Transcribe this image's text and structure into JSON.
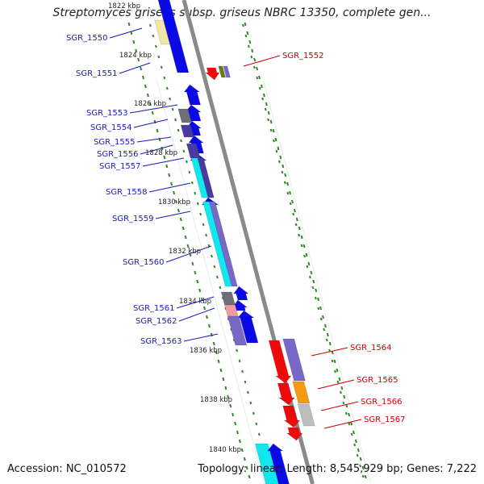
{
  "title": "Streptomyces griseus subsp. griseus NBRC 13350, complete gen...",
  "footer": {
    "accession": "Accession: NC_010572",
    "summary": "Topology: linear; Length: 8,545,929 bp; Genes: 7,222"
  },
  "ruler": [
    "1822 kbp",
    "1824 kbp",
    "1826 kbp",
    "1828 kbp",
    "1830 kbp",
    "1832 kbp",
    "1834 kbp",
    "1836 kbp",
    "1838 kbp",
    "1840 kbp"
  ],
  "colors": {
    "backbone": "#8a8a8a",
    "tick": "#2e8b22",
    "left_label": "#1a1ab4",
    "right_label": "#cc0000",
    "gene_blue": "#0a0ae6",
    "gene_red": "#ee0a0a",
    "gene_navy": "#4a3aa0",
    "gene_purple": "#7a68c8",
    "gene_cyan": "#10e8f0",
    "gene_grey": "#6e6e78",
    "gene_tan": "#f2e7a6",
    "gene_olive": "#6a7a18",
    "gene_pink": "#f19c9c",
    "gene_orange": "#f29a10",
    "gene_silver": "#bdbdbd"
  },
  "labels_left": [
    "SGR_1550",
    "SGR_1551",
    "SGR_1553",
    "SGR_1554",
    "SGR_1555",
    "SGR_1556",
    "SGR_1557",
    "SGR_1558",
    "SGR_1559",
    "SGR_1560",
    "SGR_1561",
    "SGR_1562",
    "SGR_1563"
  ],
  "labels_right": [
    "SGR_1552",
    "SGR_1564",
    "SGR_1565",
    "SGR_1566",
    "SGR_1567"
  ]
}
